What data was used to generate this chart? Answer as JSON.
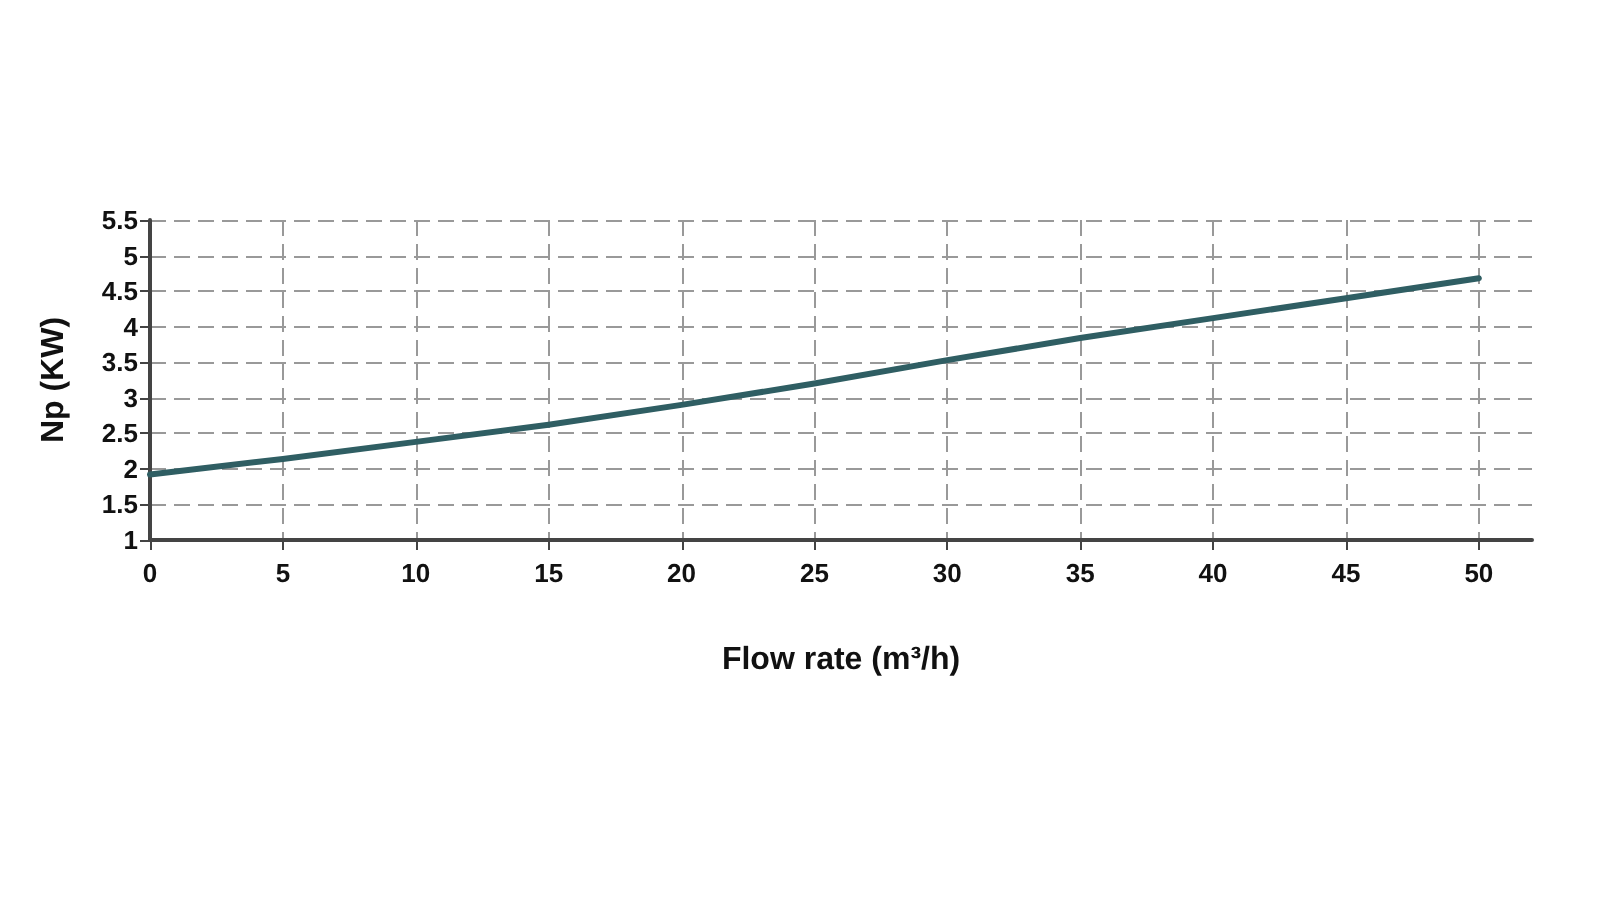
{
  "chart_data": {
    "type": "line",
    "xlabel": "Flow rate (m³/h)",
    "ylabel": "Np (KW)",
    "series": [
      {
        "color": "#2f5e63",
        "x": [
          0,
          5,
          10,
          15,
          20,
          25,
          30,
          35,
          40,
          45,
          50
        ],
        "values": [
          1.92,
          2.14,
          2.38,
          2.62,
          2.9,
          3.2,
          3.53,
          3.84,
          4.12,
          4.4,
          4.68
        ]
      }
    ],
    "xlim": [
      0,
      52
    ],
    "xticks": [
      0,
      5,
      10,
      15,
      20,
      25,
      30,
      35,
      40,
      45,
      50
    ],
    "ylim": [
      1,
      5.5
    ],
    "yticks": [
      1,
      1.5,
      2,
      2.5,
      3,
      3.5,
      4,
      4.5,
      5,
      5.5
    ],
    "grid": true,
    "marker": "none",
    "line_style": "solid"
  }
}
